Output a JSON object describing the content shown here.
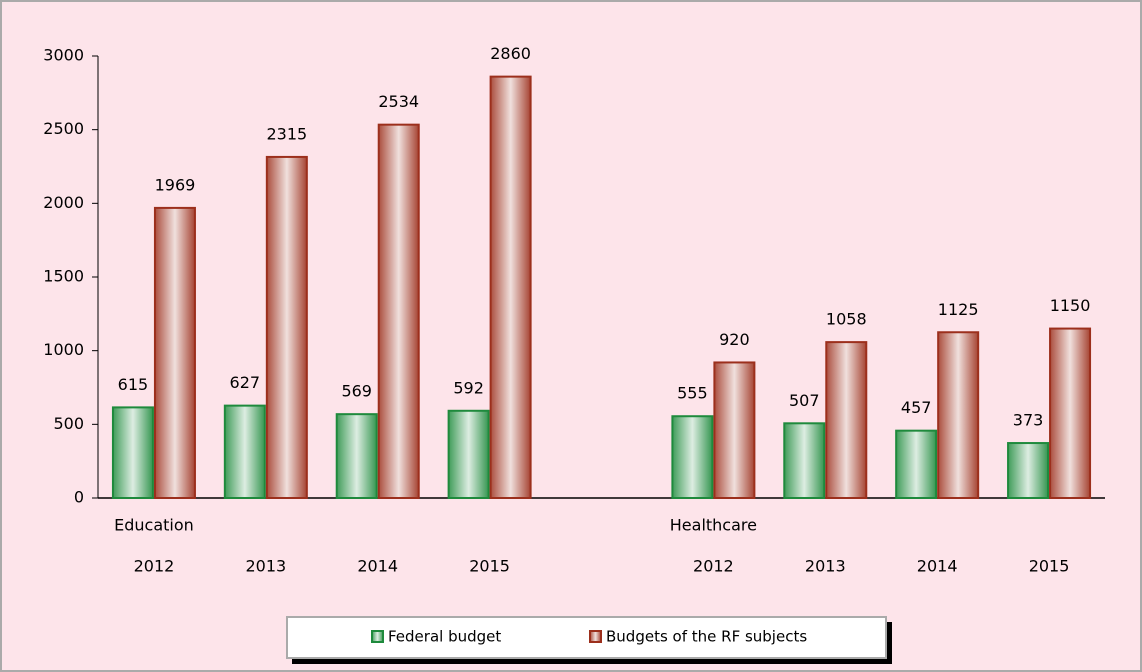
{
  "chart_data": {
    "type": "bar",
    "group_labels": [
      "Education",
      "Healthcare"
    ],
    "categories": [
      "2012",
      "2013",
      "2014",
      "2015",
      null,
      "2012",
      "2013",
      "2014",
      "2015"
    ],
    "series": [
      {
        "name": "Federal budget",
        "color": "#1e8a3c",
        "values": [
          615,
          627,
          569,
          592,
          null,
          555,
          507,
          457,
          373
        ]
      },
      {
        "name": "Budgets of the RF subjects",
        "color": "#9c2f1c",
        "values": [
          1969,
          2315,
          2534,
          2860,
          null,
          920,
          1058,
          1125,
          1150
        ]
      }
    ],
    "ylim": [
      0,
      3000
    ],
    "yticks": [
      0,
      500,
      1000,
      1500,
      2000,
      2500,
      3000
    ],
    "grid": false,
    "legend": "bottom"
  }
}
